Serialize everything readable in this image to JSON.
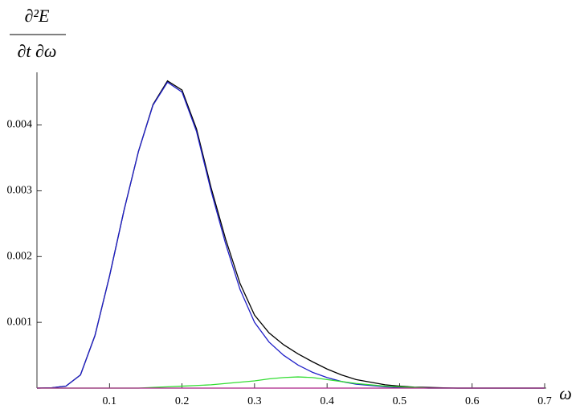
{
  "chart_data": {
    "type": "line",
    "ylabel_numerator": "∂²E",
    "ylabel_denominator": "∂t ∂ω",
    "xlabel": "ω",
    "x": [
      0,
      0.02,
      0.04,
      0.06,
      0.08,
      0.1,
      0.12,
      0.14,
      0.16,
      0.18,
      0.2,
      0.22,
      0.24,
      0.26,
      0.28,
      0.3,
      0.32,
      0.34,
      0.36,
      0.38,
      0.4,
      0.42,
      0.44,
      0.46,
      0.48,
      0.5,
      0.52,
      0.54,
      0.56,
      0.58,
      0.6,
      0.62,
      0.64,
      0.66,
      0.68,
      0.7
    ],
    "series": [
      {
        "color": "#000000",
        "values": [
          0,
          5e-06,
          3e-05,
          0.0002,
          0.0008,
          0.0017,
          0.0027,
          0.0036,
          0.00431,
          0.00467,
          0.00453,
          0.00394,
          0.00305,
          0.00227,
          0.00159,
          0.00111,
          0.00084,
          0.00066,
          0.00052,
          0.0004,
          0.00029,
          0.0002,
          0.00013,
          9e-05,
          5e-05,
          3e-05,
          1.5e-05,
          1e-05,
          5e-06,
          0,
          0,
          0,
          0,
          0,
          0,
          0
        ]
      },
      {
        "color": "#2020c8",
        "values": [
          0,
          5e-06,
          3e-05,
          0.0002,
          0.0008,
          0.0017,
          0.0027,
          0.0036,
          0.0043,
          0.00465,
          0.0045,
          0.0039,
          0.003,
          0.0022,
          0.0015,
          0.001,
          0.0007,
          0.0005,
          0.00035,
          0.00024,
          0.00016,
          0.0001,
          6e-05,
          4e-05,
          2e-05,
          1e-05,
          5e-06,
          0,
          0,
          0,
          0,
          0,
          0,
          0,
          0,
          0
        ]
      },
      {
        "color": "#33dd33",
        "values": [
          0,
          0,
          0,
          0,
          0,
          0,
          0,
          0,
          1e-05,
          2e-05,
          3e-05,
          4e-05,
          5e-05,
          7e-05,
          9e-05,
          0.00011,
          0.00014,
          0.00016,
          0.00017,
          0.00016,
          0.00013,
          0.0001,
          7e-05,
          5e-05,
          3e-05,
          2e-05,
          1e-05,
          0,
          0,
          0,
          0,
          0,
          0,
          0,
          0,
          0
        ]
      },
      {
        "color": "#aa2288",
        "values": [
          0,
          0,
          0,
          0,
          0,
          0,
          0,
          0,
          0,
          0,
          0,
          0,
          0,
          0,
          0,
          0,
          0,
          0,
          0,
          0,
          0,
          0,
          0,
          0,
          0,
          0,
          0,
          0,
          0,
          0,
          0,
          0,
          0,
          0,
          0,
          0
        ]
      }
    ],
    "xlim": [
      0,
      0.7
    ],
    "xticks": [
      0.1,
      0.2,
      0.3,
      0.4,
      0.5,
      0.6,
      0.7
    ],
    "ylim": [
      0,
      0.0048
    ],
    "yticks": [
      0.001,
      0.002,
      0.003,
      0.004
    ]
  }
}
